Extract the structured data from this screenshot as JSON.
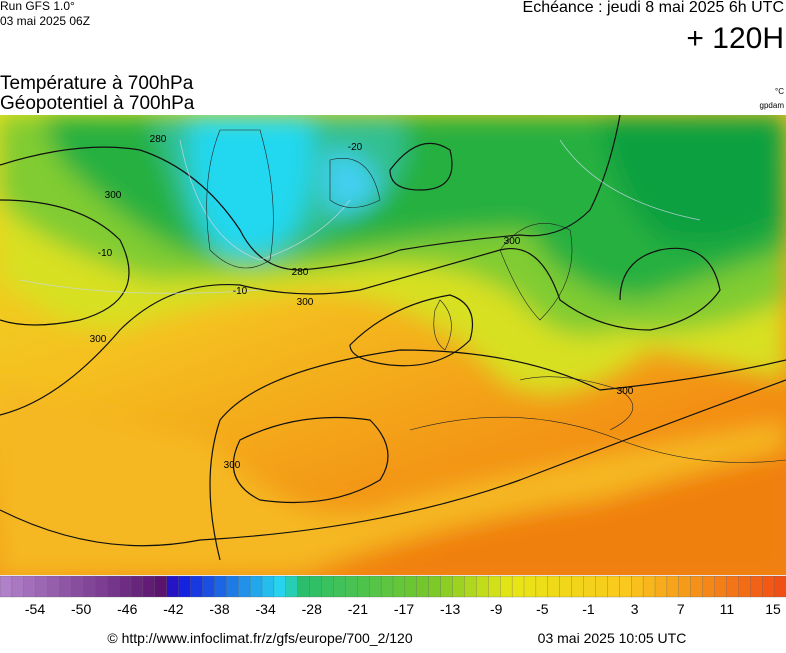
{
  "header": {
    "run": "Run GFS 1.0°",
    "run_date": "03 mai 2025 06Z",
    "forecast": "Echéance : jeudi 8 mai 2025 6h UTC",
    "lead": "+ 120H"
  },
  "titles": [
    "Température à 700hPa",
    "Géopotentiel à 700hPa"
  ],
  "units": [
    "°C",
    "gpdam"
  ],
  "contour_labels": [
    "280",
    "300",
    "300",
    "280",
    "300",
    "300",
    "300",
    "300",
    "-20",
    "-10",
    "-10"
  ],
  "colorbar_labels": [
    "-54",
    "-50",
    "-46",
    "-42",
    "-38",
    "-34",
    "-28",
    "-21",
    "-17",
    "-13",
    "-9",
    "-5",
    "-1",
    "3",
    "7",
    "11",
    "15"
  ],
  "footer": {
    "url": "© http://www.infoclimat.fr/z/gfs/europe/700_2/120",
    "generated": "03 mai 2025 10:05 UTC"
  }
}
